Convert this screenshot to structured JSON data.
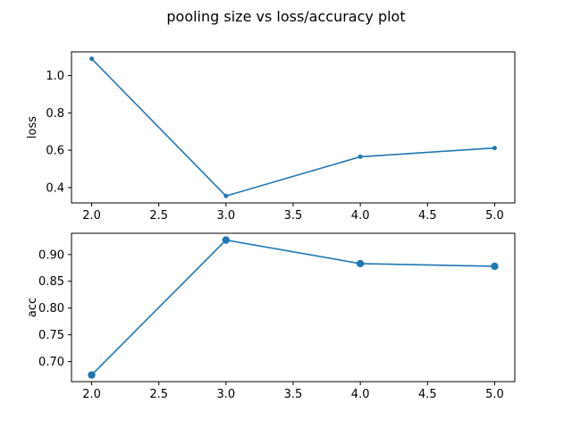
{
  "figure": {
    "title": "pooling size vs loss/accuracy plot"
  },
  "style": {
    "line_color": "#1f77b4",
    "background": "#ffffff"
  },
  "chart_data": [
    {
      "type": "line",
      "id": "loss-chart",
      "x": [
        2.0,
        3.0,
        4.0,
        5.0
      ],
      "series": [
        {
          "values": [
            1.09,
            0.355,
            0.565,
            0.612
          ]
        }
      ],
      "xlabel": "",
      "ylabel": "loss",
      "xlim": [
        1.85,
        5.15
      ],
      "ylim": [
        0.318,
        1.127
      ],
      "xticks": [
        2.0,
        2.5,
        3.0,
        3.5,
        4.0,
        4.5,
        5.0
      ],
      "yticks": [
        0.4,
        0.6,
        0.8,
        1.0
      ],
      "xtick_labels": [
        "2.0",
        "2.5",
        "3.0",
        "3.5",
        "4.0",
        "4.5",
        "5.0"
      ],
      "ytick_labels": [
        "0.4",
        "0.6",
        "0.8",
        "1.0"
      ],
      "marker": "small-dot",
      "grid": false
    },
    {
      "type": "line",
      "id": "acc-chart",
      "x": [
        2.0,
        3.0,
        4.0,
        5.0
      ],
      "series": [
        {
          "values": [
            0.675,
            0.927,
            0.883,
            0.878
          ]
        }
      ],
      "xlabel": "",
      "ylabel": "acc",
      "xlim": [
        1.85,
        5.15
      ],
      "ylim": [
        0.6625,
        0.9397
      ],
      "xticks": [
        2.0,
        2.5,
        3.0,
        3.5,
        4.0,
        4.5,
        5.0
      ],
      "yticks": [
        0.7,
        0.75,
        0.8,
        0.85,
        0.9
      ],
      "xtick_labels": [
        "2.0",
        "2.5",
        "3.0",
        "3.5",
        "4.0",
        "4.5",
        "5.0"
      ],
      "ytick_labels": [
        "0.70",
        "0.75",
        "0.80",
        "0.85",
        "0.90"
      ],
      "marker": "large-dot",
      "grid": false
    }
  ]
}
